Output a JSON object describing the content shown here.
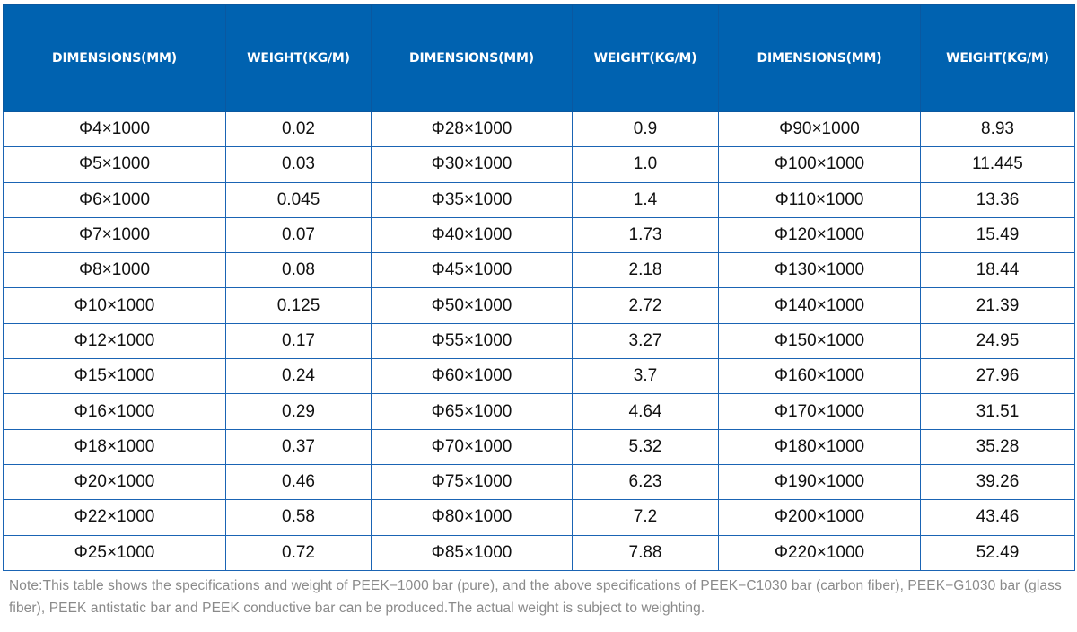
{
  "table": {
    "headers": [
      "DIMENSIONS(MM)",
      "WEIGHT(KG/M)",
      "DIMENSIONS(MM)",
      "WEIGHT(KG/M)",
      "DIMENSIONS(MM)",
      "WEIGHT(KG/M)"
    ],
    "header_color": "#0062b0",
    "rows": [
      [
        "Φ4×1000",
        "0.02",
        "Φ28×1000",
        "0.9",
        "Φ90×1000",
        "8.93"
      ],
      [
        "Φ5×1000",
        "0.03",
        "Φ30×1000",
        "1.0",
        "Φ100×1000",
        "11.445"
      ],
      [
        "Φ6×1000",
        "0.045",
        "Φ35×1000",
        "1.4",
        "Φ110×1000",
        "13.36"
      ],
      [
        "Φ7×1000",
        "0.07",
        "Φ40×1000",
        "1.73",
        "Φ120×1000",
        "15.49"
      ],
      [
        "Φ8×1000",
        "0.08",
        "Φ45×1000",
        "2.18",
        "Φ130×1000",
        "18.44"
      ],
      [
        "Φ10×1000",
        "0.125",
        "Φ50×1000",
        "2.72",
        "Φ140×1000",
        "21.39"
      ],
      [
        "Φ12×1000",
        "0.17",
        "Φ55×1000",
        "3.27",
        "Φ150×1000",
        "24.95"
      ],
      [
        "Φ15×1000",
        "0.24",
        "Φ60×1000",
        "3.7",
        "Φ160×1000",
        "27.96"
      ],
      [
        "Φ16×1000",
        "0.29",
        "Φ65×1000",
        "4.64",
        "Φ170×1000",
        "31.51"
      ],
      [
        "Φ18×1000",
        "0.37",
        "Φ70×1000",
        "5.32",
        "Φ180×1000",
        "35.28"
      ],
      [
        "Φ20×1000",
        "0.46",
        "Φ75×1000",
        "6.23",
        "Φ190×1000",
        "39.26"
      ],
      [
        "Φ22×1000",
        "0.58",
        "Φ80×1000",
        "7.2",
        "Φ200×1000",
        "43.46"
      ],
      [
        "Φ25×1000",
        "0.72",
        "Φ85×1000",
        "7.88",
        "Φ220×1000",
        "52.49"
      ]
    ]
  },
  "note": "Note:This table shows the specifications and weight of PEEK−1000 bar (pure), and the above specifications of PEEK−C1030 bar (carbon fiber), PEEK−G1030 bar (glass fiber), PEEK antistatic bar and PEEK conductive bar can be produced.The actual weight is subject to weighting."
}
